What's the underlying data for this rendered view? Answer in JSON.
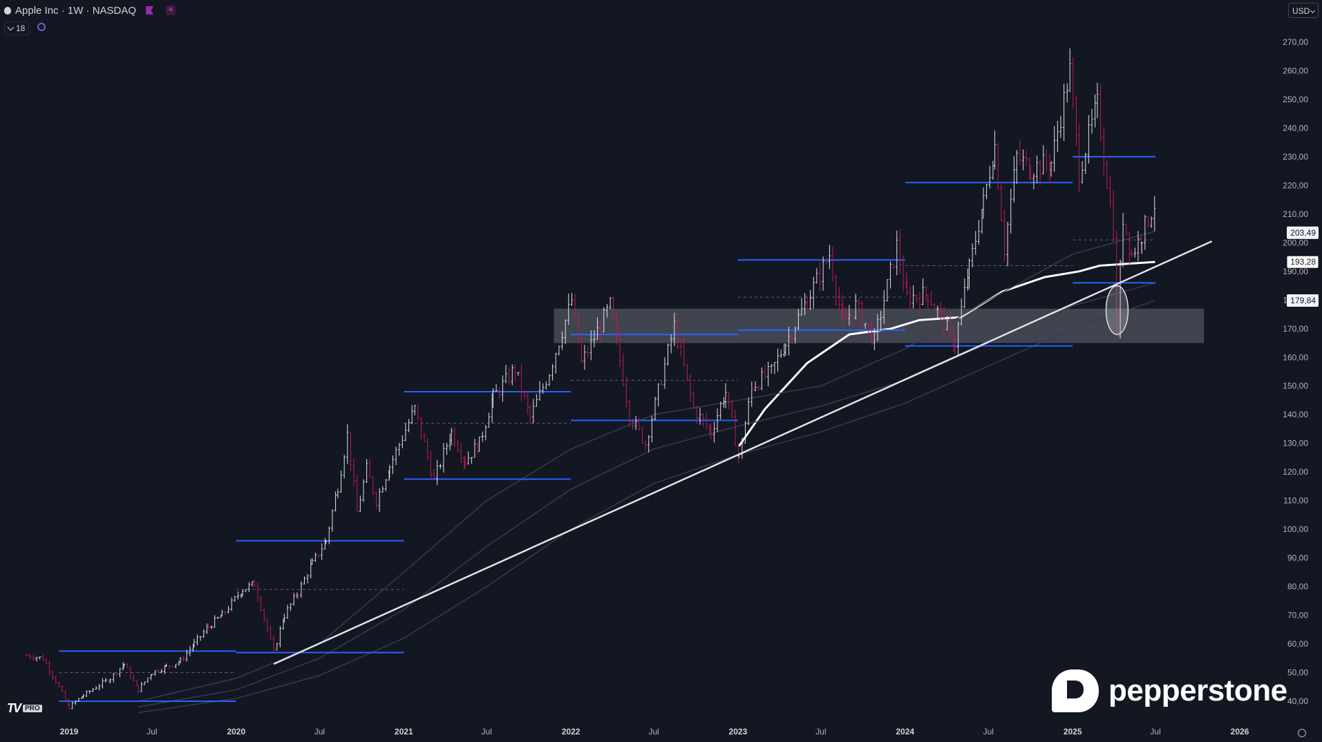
{
  "header": {
    "symbol_title": "Apple Inc · 1W · NASDAQ",
    "indicator_count": "18",
    "currency": "USD"
  },
  "colors": {
    "background": "#131722",
    "up_candle": "#e0e3eb",
    "down_candle": "#c2185b",
    "levels": "#2962ff",
    "trendline": "#e0e3eb",
    "moving_average": "#ffffff",
    "zone": "#d1d4dc"
  },
  "icons": [
    "apple-icon",
    "flag-icon",
    "menu-icon",
    "chevron-down-icon",
    "sync-icon",
    "settings-icon"
  ],
  "branding": {
    "tradingview": "TV",
    "tradingview_tier": "PRO",
    "watermark": "pepperstone"
  },
  "chart_data": {
    "type": "candlestick",
    "timeframe": "1W",
    "x_range": [
      "2018-10-01",
      "2026-03-01"
    ],
    "y_range": [
      35,
      275
    ],
    "y_ticks": [
      40,
      50,
      60,
      70,
      80,
      90,
      100,
      110,
      120,
      130,
      140,
      150,
      160,
      170,
      180,
      190,
      200,
      210,
      220,
      230,
      240,
      250,
      260,
      270
    ],
    "y_tick_labels": [
      "40,00",
      "50,00",
      "60,00",
      "70,00",
      "80,00",
      "90,00",
      "100,00",
      "110,00",
      "120,00",
      "130,00",
      "140,00",
      "150,00",
      "160,00",
      "170,00",
      "180,00",
      "190,00",
      "200,00",
      "210,00",
      "220,00",
      "230,00",
      "240,00",
      "250,00",
      "260,00",
      "270,00"
    ],
    "x_ticks": [
      {
        "label": "2019",
        "date": "2019-01-01",
        "year": true
      },
      {
        "label": "Jul",
        "date": "2019-07-01",
        "year": false
      },
      {
        "label": "2020",
        "date": "2020-01-01",
        "year": true
      },
      {
        "label": "Jul",
        "date": "2020-07-01",
        "year": false
      },
      {
        "label": "2021",
        "date": "2021-01-01",
        "year": true
      },
      {
        "label": "Jul",
        "date": "2021-07-01",
        "year": false
      },
      {
        "label": "2022",
        "date": "2022-01-01",
        "year": true
      },
      {
        "label": "Jul",
        "date": "2022-07-01",
        "year": false
      },
      {
        "label": "2023",
        "date": "2023-01-01",
        "year": true
      },
      {
        "label": "Jul",
        "date": "2023-07-01",
        "year": false
      },
      {
        "label": "2024",
        "date": "2024-01-01",
        "year": true
      },
      {
        "label": "Jul",
        "date": "2024-07-01",
        "year": false
      },
      {
        "label": "2025",
        "date": "2025-01-01",
        "year": true
      },
      {
        "label": "Jul",
        "date": "2025-07-01",
        "year": false
      },
      {
        "label": "2026",
        "date": "2026-01-01",
        "year": true
      }
    ],
    "price_path": [
      [
        "2018-10-01",
        56
      ],
      [
        "2018-11-05",
        55
      ],
      [
        "2018-12-03",
        47
      ],
      [
        "2019-01-01",
        38
      ],
      [
        "2019-02-01",
        42
      ],
      [
        "2019-03-01",
        45
      ],
      [
        "2019-04-01",
        48
      ],
      [
        "2019-05-01",
        53
      ],
      [
        "2019-06-01",
        44
      ],
      [
        "2019-07-01",
        50
      ],
      [
        "2019-08-01",
        52
      ],
      [
        "2019-09-01",
        54
      ],
      [
        "2019-10-01",
        60
      ],
      [
        "2019-11-01",
        66
      ],
      [
        "2019-12-01",
        70
      ],
      [
        "2020-01-15",
        79
      ],
      [
        "2020-02-10",
        81
      ],
      [
        "2020-03-23",
        57
      ],
      [
        "2020-04-15",
        70
      ],
      [
        "2020-05-15",
        78
      ],
      [
        "2020-06-15",
        88
      ],
      [
        "2020-07-15",
        96
      ],
      [
        "2020-08-10",
        115
      ],
      [
        "2020-08-31",
        133
      ],
      [
        "2020-09-21",
        106
      ],
      [
        "2020-10-12",
        121
      ],
      [
        "2020-11-02",
        110
      ],
      [
        "2020-12-01",
        122
      ],
      [
        "2021-01-25",
        142
      ],
      [
        "2021-03-08",
        117
      ],
      [
        "2021-04-15",
        134
      ],
      [
        "2021-05-15",
        124
      ],
      [
        "2021-06-15",
        130
      ],
      [
        "2021-07-15",
        146
      ],
      [
        "2021-09-01",
        156
      ],
      [
        "2021-10-04",
        139
      ],
      [
        "2021-11-15",
        155
      ],
      [
        "2022-01-03",
        180
      ],
      [
        "2022-01-24",
        158
      ],
      [
        "2022-03-28",
        178
      ],
      [
        "2022-05-09",
        140
      ],
      [
        "2022-06-13",
        130
      ],
      [
        "2022-08-15",
        171
      ],
      [
        "2022-09-26",
        142
      ],
      [
        "2022-11-03",
        134
      ],
      [
        "2022-12-05",
        148
      ],
      [
        "2023-01-03",
        125
      ],
      [
        "2023-02-01",
        150
      ],
      [
        "2023-03-15",
        155
      ],
      [
        "2023-04-15",
        165
      ],
      [
        "2023-06-01",
        180
      ],
      [
        "2023-07-20",
        196
      ],
      [
        "2023-08-18",
        172
      ],
      [
        "2023-09-15",
        178
      ],
      [
        "2023-10-26",
        166
      ],
      [
        "2023-12-14",
        199
      ],
      [
        "2024-01-05",
        181
      ],
      [
        "2024-02-20",
        182
      ],
      [
        "2024-04-19",
        165
      ],
      [
        "2024-05-20",
        191
      ],
      [
        "2024-06-20",
        214
      ],
      [
        "2024-07-15",
        234
      ],
      [
        "2024-08-05",
        198
      ],
      [
        "2024-09-01",
        230
      ],
      [
        "2024-10-01",
        226
      ],
      [
        "2024-11-15",
        228
      ],
      [
        "2024-12-26",
        260
      ],
      [
        "2025-01-15",
        225
      ],
      [
        "2025-02-24",
        248
      ],
      [
        "2025-03-31",
        205
      ],
      [
        "2025-04-08",
        169
      ],
      [
        "2025-04-21",
        209
      ],
      [
        "2025-05-10",
        196
      ],
      [
        "2025-06-01",
        203
      ],
      [
        "2025-06-30",
        214
      ]
    ],
    "horizontal_levels": [
      {
        "from": "2018-12-10",
        "to": "2020-01-01",
        "value": 40,
        "style": "solid"
      },
      {
        "from": "2018-12-10",
        "to": "2020-01-01",
        "value": 57.5,
        "style": "solid"
      },
      {
        "from": "2020-01-01",
        "to": "2021-01-01",
        "value": 57,
        "style": "solid"
      },
      {
        "from": "2020-01-01",
        "to": "2021-01-01",
        "value": 96,
        "style": "solid"
      },
      {
        "from": "2021-01-01",
        "to": "2022-01-01",
        "value": 117.5,
        "style": "solid"
      },
      {
        "from": "2021-01-01",
        "to": "2022-01-01",
        "value": 148,
        "style": "solid"
      },
      {
        "from": "2022-01-01",
        "to": "2023-01-01",
        "value": 138,
        "style": "solid"
      },
      {
        "from": "2022-01-01",
        "to": "2023-01-01",
        "value": 168,
        "style": "solid"
      },
      {
        "from": "2023-01-01",
        "to": "2024-01-01",
        "value": 169.5,
        "style": "solid"
      },
      {
        "from": "2023-01-01",
        "to": "2024-01-01",
        "value": 194,
        "style": "solid"
      },
      {
        "from": "2024-01-01",
        "to": "2025-01-01",
        "value": 164,
        "style": "solid"
      },
      {
        "from": "2024-01-01",
        "to": "2025-01-01",
        "value": 221,
        "style": "solid"
      },
      {
        "from": "2025-01-01",
        "to": "2025-07-01",
        "value": 186,
        "style": "solid"
      },
      {
        "from": "2025-01-01",
        "to": "2025-07-01",
        "value": 230,
        "style": "solid"
      },
      {
        "from": "2018-12-10",
        "to": "2020-01-01",
        "value": 50,
        "style": "dashed"
      },
      {
        "from": "2020-01-01",
        "to": "2021-01-01",
        "value": 79,
        "style": "dashed"
      },
      {
        "from": "2021-01-01",
        "to": "2022-01-01",
        "value": 137,
        "style": "dashed"
      },
      {
        "from": "2022-01-01",
        "to": "2023-01-01",
        "value": 152,
        "style": "dashed"
      },
      {
        "from": "2023-01-01",
        "to": "2024-01-01",
        "value": 181,
        "style": "dashed"
      },
      {
        "from": "2024-01-01",
        "to": "2025-01-01",
        "value": 192,
        "style": "dashed"
      },
      {
        "from": "2025-01-01",
        "to": "2025-07-01",
        "value": 201,
        "style": "dashed"
      }
    ],
    "trendline": {
      "from": [
        "2020-03-23",
        53
      ],
      "to": [
        "2025-11-01",
        200.5
      ]
    },
    "support_zone": {
      "from": "2021-11-25",
      "to": "2025-10-15",
      "low": 165,
      "high": 177
    },
    "highlight_ellipse": {
      "date": "2025-04-08",
      "low": 168,
      "high": 185
    },
    "moving_averages": [
      {
        "path": [
          [
            "2023-01-03",
            129
          ],
          [
            "2023-03-01",
            142
          ],
          [
            "2023-06-01",
            158
          ],
          [
            "2023-09-01",
            168
          ],
          [
            "2023-12-01",
            170
          ],
          [
            "2024-02-01",
            173
          ],
          [
            "2024-05-01",
            174
          ],
          [
            "2024-08-01",
            183
          ],
          [
            "2024-11-01",
            188
          ],
          [
            "2025-01-15",
            190
          ],
          [
            "2025-03-01",
            192
          ],
          [
            "2025-06-30",
            193.3
          ]
        ],
        "emphasis": "primary"
      },
      {
        "path": [
          [
            "2019-06-01",
            40
          ],
          [
            "2020-01-01",
            48
          ],
          [
            "2020-07-01",
            60
          ],
          [
            "2021-01-01",
            85
          ],
          [
            "2021-07-01",
            110
          ],
          [
            "2022-01-01",
            128
          ],
          [
            "2022-07-01",
            140
          ],
          [
            "2023-01-01",
            145
          ],
          [
            "2023-07-01",
            150
          ],
          [
            "2024-01-01",
            163
          ],
          [
            "2024-07-01",
            180
          ],
          [
            "2025-01-01",
            196
          ],
          [
            "2025-06-30",
            204
          ]
        ],
        "emphasis": "faint"
      },
      {
        "path": [
          [
            "2019-06-01",
            38
          ],
          [
            "2020-01-01",
            44
          ],
          [
            "2020-07-01",
            55
          ],
          [
            "2021-01-01",
            72
          ],
          [
            "2021-07-01",
            94
          ],
          [
            "2022-01-01",
            114
          ],
          [
            "2022-07-01",
            128
          ],
          [
            "2023-01-01",
            136
          ],
          [
            "2023-07-01",
            143
          ],
          [
            "2024-01-01",
            152
          ],
          [
            "2024-07-01",
            165
          ],
          [
            "2025-01-01",
            178
          ],
          [
            "2025-06-30",
            186
          ]
        ],
        "emphasis": "faint"
      },
      {
        "path": [
          [
            "2019-06-01",
            36
          ],
          [
            "2020-01-01",
            41
          ],
          [
            "2020-07-01",
            49
          ],
          [
            "2021-01-01",
            62
          ],
          [
            "2021-07-01",
            80
          ],
          [
            "2022-01-01",
            100
          ],
          [
            "2022-07-01",
            116
          ],
          [
            "2023-01-01",
            126
          ],
          [
            "2023-07-01",
            134
          ],
          [
            "2024-01-01",
            144
          ],
          [
            "2024-07-01",
            157
          ],
          [
            "2025-01-01",
            170
          ],
          [
            "2025-06-30",
            179.8
          ]
        ],
        "emphasis": "faint"
      }
    ],
    "price_tags": [
      {
        "value": 203.49,
        "label": "203,49",
        "style": "light"
      },
      {
        "value": 193.28,
        "label": "193,28",
        "style": "dark"
      },
      {
        "value": 179.84,
        "label": "179,84",
        "style": "light"
      }
    ]
  }
}
